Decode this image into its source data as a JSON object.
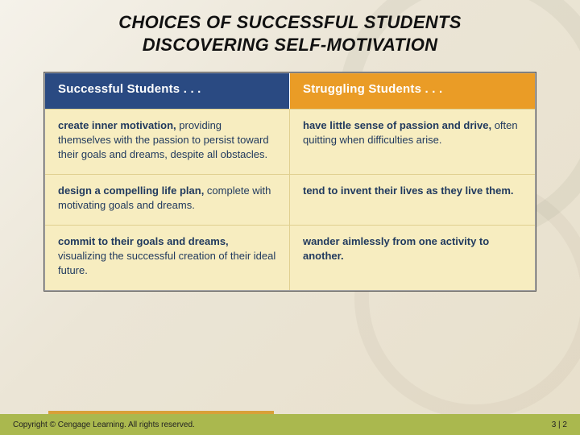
{
  "title": {
    "line1": "CHOICES OF SUCCESSFUL STUDENTS",
    "line2": "DISCOVERING SELF-MOTIVATION"
  },
  "table": {
    "headers": {
      "left": "Successful Students . . .",
      "right": "Struggling Students . . ."
    },
    "rows": [
      {
        "left_lead": "create inner motivation,",
        "left_rest": " providing themselves with the passion to persist toward their goals and dreams, despite all obstacles.",
        "right_lead": "have little sense of passion and drive,",
        "right_rest": " often quitting when difficulties arise."
      },
      {
        "left_lead": "design a compelling life plan,",
        "left_rest": " complete with motivating goals and dreams.",
        "right_lead": "tend to invent their lives as they live them.",
        "right_rest": ""
      },
      {
        "left_lead": "commit to their goals and dreams,",
        "left_rest": " visualizing the successful creation of their ideal future.",
        "right_lead": "wander aimlessly from one activity to another.",
        "right_rest": ""
      }
    ]
  },
  "footer": {
    "copyright": "Copyright © Cengage Learning. All rights reserved.",
    "page": "3 | 2"
  },
  "colors": {
    "header_left_bg": "#2a4a82",
    "header_right_bg": "#ea9c26",
    "body_bg": "#f7edc0",
    "body_text": "#213a5e",
    "footer_bg": "#aab84e",
    "accent_bar": "#d8a038"
  }
}
